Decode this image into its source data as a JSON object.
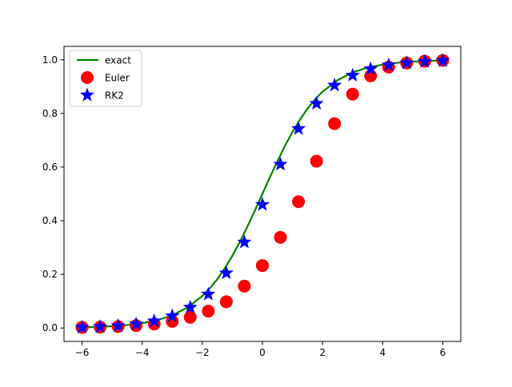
{
  "chart_data": {
    "type": "line",
    "title": "",
    "xlabel": "",
    "ylabel": "",
    "xlim": [
      -6.6,
      6.6
    ],
    "ylim": [
      -0.05,
      1.05
    ],
    "x_ticks": [
      -6,
      -4,
      -2,
      0,
      2,
      4,
      6
    ],
    "y_ticks": [
      0.0,
      0.2,
      0.4,
      0.6,
      0.8,
      1.0
    ],
    "x_tick_labels": [
      "−6",
      "−4",
      "−2",
      "0",
      "2",
      "4",
      "6"
    ],
    "y_tick_labels": [
      "0.0",
      "0.2",
      "0.4",
      "0.6",
      "0.8",
      "1.0"
    ],
    "grid": false,
    "legend": {
      "position": "top-left",
      "entries": [
        "exact",
        "Euler",
        "RK2"
      ]
    },
    "series": [
      {
        "name": "exact",
        "kind": "line",
        "color": "#008000",
        "x": [
          -6,
          -5.5,
          -5,
          -4.5,
          -4,
          -3.5,
          -3,
          -2.5,
          -2,
          -1.75,
          -1.5,
          -1.25,
          -1,
          -0.75,
          -0.5,
          -0.25,
          0,
          0.25,
          0.5,
          0.75,
          1,
          1.25,
          1.5,
          1.75,
          2,
          2.5,
          3,
          3.5,
          4,
          4.5,
          5,
          5.5,
          6
        ],
        "y": [
          0.0025,
          0.0041,
          0.0067,
          0.011,
          0.018,
          0.029,
          0.047,
          0.076,
          0.119,
          0.148,
          0.182,
          0.223,
          0.269,
          0.321,
          0.378,
          0.438,
          0.5,
          0.562,
          0.622,
          0.679,
          0.731,
          0.777,
          0.818,
          0.852,
          0.881,
          0.924,
          0.953,
          0.971,
          0.982,
          0.989,
          0.993,
          0.996,
          0.9975
        ]
      },
      {
        "name": "Euler",
        "kind": "marker",
        "marker": "circle",
        "color": "#ff0000",
        "x": [
          -6,
          -5.4,
          -4.8,
          -4.2,
          -3.6,
          -3,
          -2.4,
          -1.8,
          -1.2,
          -0.6,
          0,
          0.6,
          1.2,
          1.8,
          2.4,
          3,
          3.6,
          4.2,
          4.8,
          5.4,
          6
        ],
        "y": [
          0.0025,
          0.0031,
          0.0055,
          0.0091,
          0.015,
          0.025,
          0.04,
          0.063,
          0.098,
          0.156,
          0.233,
          0.338,
          0.471,
          0.622,
          0.762,
          0.872,
          0.94,
          0.973,
          0.988,
          0.995,
          0.998
        ]
      },
      {
        "name": "RK2",
        "kind": "marker",
        "marker": "star",
        "color": "#0000ff",
        "x": [
          -6,
          -5.4,
          -4.8,
          -4.2,
          -3.6,
          -3,
          -2.4,
          -1.8,
          -1.2,
          -0.6,
          0,
          0.6,
          1.2,
          1.8,
          2.4,
          3,
          3.6,
          4.2,
          4.8,
          5.4,
          6
        ],
        "y": [
          0.0025,
          0.0045,
          0.0081,
          0.0147,
          0.026,
          0.045,
          0.077,
          0.126,
          0.205,
          0.32,
          0.46,
          0.61,
          0.743,
          0.837,
          0.905,
          0.942,
          0.966,
          0.98,
          0.988,
          0.993,
          0.996
        ]
      }
    ]
  }
}
